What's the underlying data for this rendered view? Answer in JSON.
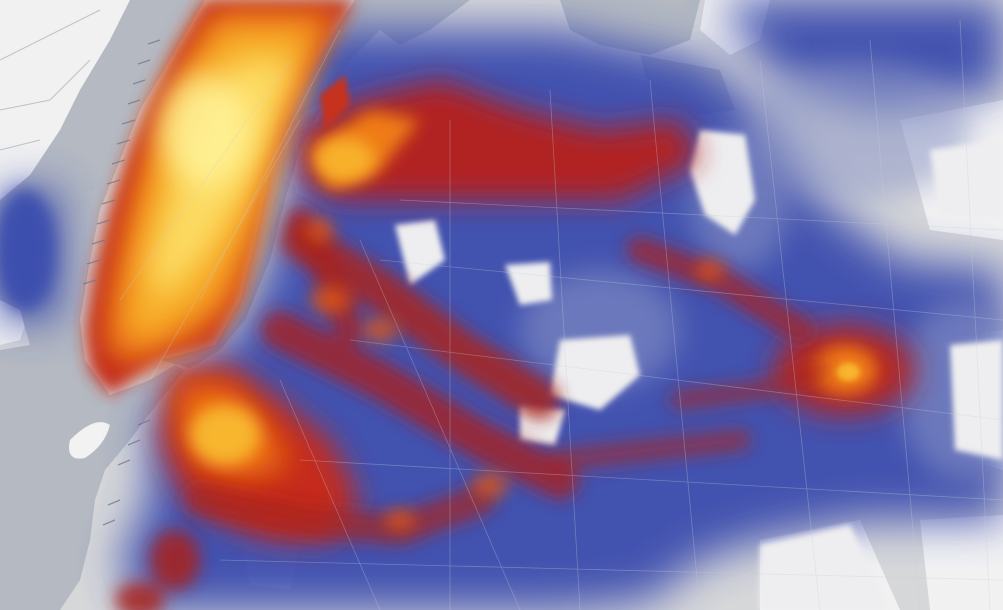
{
  "map": {
    "type": "density-heatmap",
    "colors": {
      "background": "#ffffff",
      "water": "#b4b9c2",
      "land": "#d6d7d9",
      "streets": "#9ea1a6",
      "low_density": "#3246a6",
      "mid_density": "#a81f1a",
      "high_density": "#f07a0a",
      "peak_density": "#fff79a"
    },
    "density_scale": [
      "#3246a6",
      "#3e4fae",
      "#8a2a4a",
      "#c2281c",
      "#e4560d",
      "#f79e18",
      "#fcd65a",
      "#fff79a"
    ]
  }
}
